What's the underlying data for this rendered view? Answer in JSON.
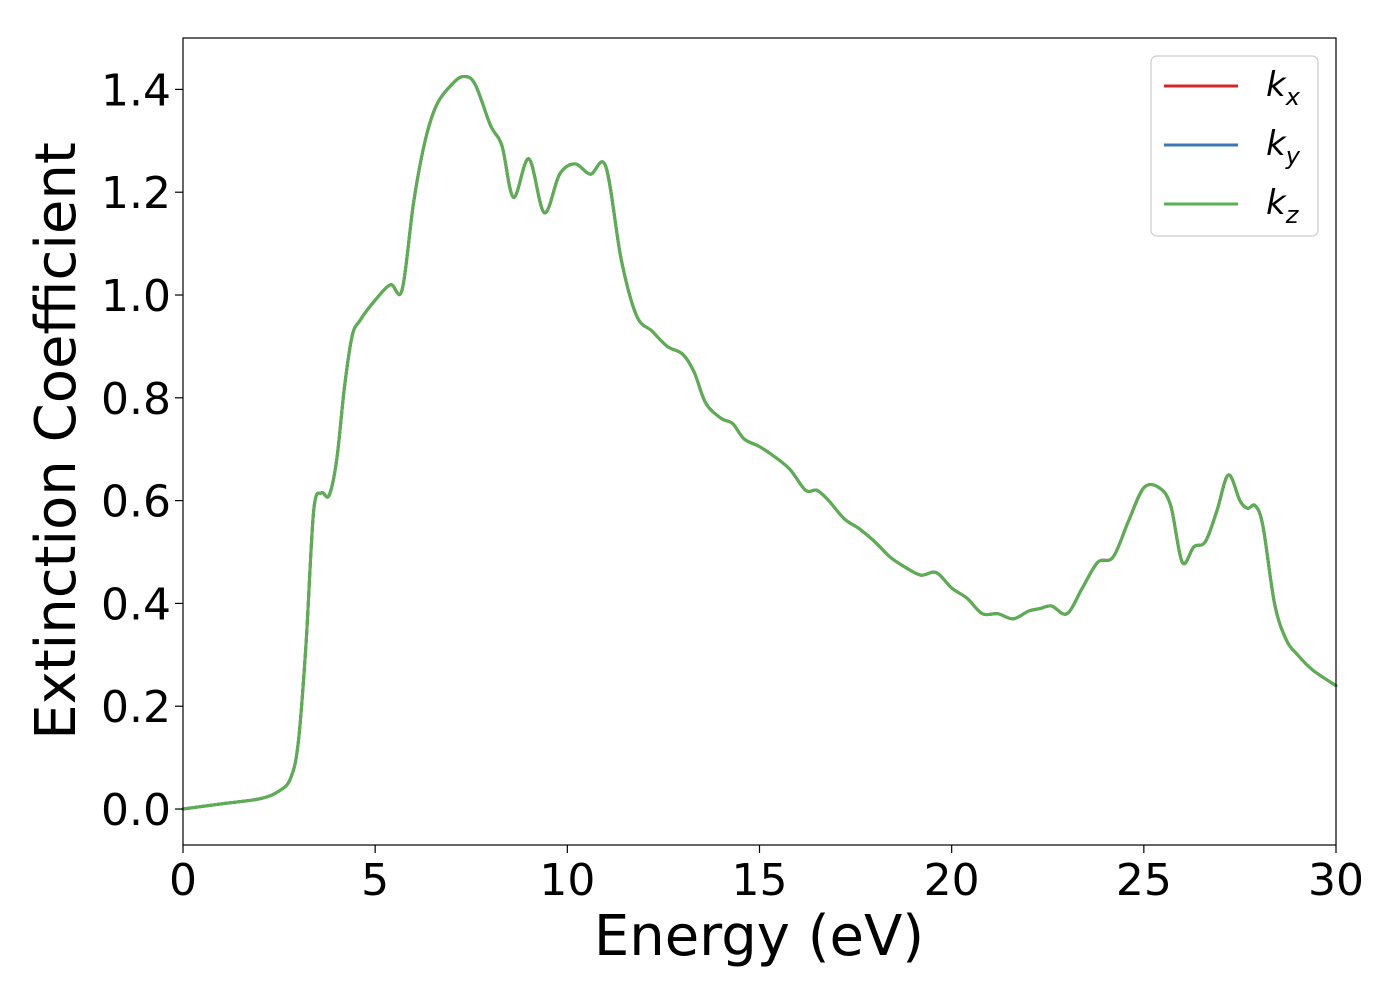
{
  "chart_data": {
    "type": "line",
    "title": "",
    "xlabel": "Energy (eV)",
    "ylabel": "Extinction Coefficient",
    "xlim": [
      0,
      30
    ],
    "ylim": [
      -0.07,
      1.5
    ],
    "xticks": [
      0,
      5,
      10,
      15,
      20,
      25,
      30
    ],
    "xtick_labels": [
      "0",
      "5",
      "10",
      "15",
      "20",
      "25",
      "30"
    ],
    "yticks": [
      0.0,
      0.2,
      0.4,
      0.6,
      0.8,
      1.0,
      1.2,
      1.4
    ],
    "ytick_labels": [
      "0.0",
      "0.2",
      "0.4",
      "0.6",
      "0.8",
      "1.0",
      "1.2",
      "1.4"
    ],
    "grid": false,
    "legend_position": "top-right",
    "series": [
      {
        "name": "k",
        "subscript": "x",
        "color": "#d62728",
        "x": [
          0,
          1,
          2,
          2.5,
          2.8,
          3.0,
          3.2,
          3.4,
          3.6,
          3.8,
          4.0,
          4.2,
          4.4,
          4.6,
          5.0,
          5.4,
          5.7,
          6.0,
          6.3,
          6.6,
          7.0,
          7.3,
          7.6,
          8.0,
          8.3,
          8.6,
          9.0,
          9.4,
          9.8,
          10.2,
          10.6,
          11.0,
          11.4,
          11.8,
          12.2,
          12.6,
          13.0,
          13.3,
          13.6,
          14.0,
          14.3,
          14.6,
          15.0,
          15.4,
          15.8,
          16.2,
          16.5,
          16.8,
          17.2,
          17.6,
          18.0,
          18.4,
          18.8,
          19.2,
          19.6,
          20.0,
          20.4,
          20.8,
          21.2,
          21.6,
          22.0,
          22.3,
          22.6,
          23.0,
          23.4,
          23.8,
          24.2,
          24.6,
          25.0,
          25.4,
          25.7,
          26.0,
          26.3,
          26.6,
          26.9,
          27.2,
          27.5,
          27.7,
          27.9,
          28.1,
          28.4,
          28.7,
          29.0,
          29.4,
          30.0
        ],
        "y": [
          0.0,
          0.01,
          0.02,
          0.035,
          0.06,
          0.13,
          0.32,
          0.58,
          0.615,
          0.61,
          0.68,
          0.82,
          0.92,
          0.95,
          0.99,
          1.02,
          1.01,
          1.18,
          1.3,
          1.37,
          1.41,
          1.425,
          1.41,
          1.33,
          1.29,
          1.19,
          1.265,
          1.16,
          1.235,
          1.255,
          1.235,
          1.25,
          1.07,
          0.96,
          0.93,
          0.9,
          0.885,
          0.85,
          0.79,
          0.76,
          0.75,
          0.72,
          0.705,
          0.685,
          0.66,
          0.62,
          0.62,
          0.6,
          0.565,
          0.545,
          0.52,
          0.49,
          0.47,
          0.455,
          0.46,
          0.43,
          0.41,
          0.38,
          0.38,
          0.37,
          0.385,
          0.39,
          0.395,
          0.38,
          0.43,
          0.48,
          0.49,
          0.56,
          0.625,
          0.625,
          0.59,
          0.48,
          0.51,
          0.52,
          0.58,
          0.65,
          0.6,
          0.585,
          0.59,
          0.55,
          0.4,
          0.33,
          0.3,
          0.27,
          0.24
        ]
      },
      {
        "name": "k",
        "subscript": "y",
        "color": "#3e78b2",
        "x": [
          0,
          1,
          2,
          2.5,
          2.8,
          3.0,
          3.2,
          3.4,
          3.6,
          3.8,
          4.0,
          4.2,
          4.4,
          4.6,
          5.0,
          5.4,
          5.7,
          6.0,
          6.3,
          6.6,
          7.0,
          7.3,
          7.6,
          8.0,
          8.3,
          8.6,
          9.0,
          9.4,
          9.8,
          10.2,
          10.6,
          11.0,
          11.4,
          11.8,
          12.2,
          12.6,
          13.0,
          13.3,
          13.6,
          14.0,
          14.3,
          14.6,
          15.0,
          15.4,
          15.8,
          16.2,
          16.5,
          16.8,
          17.2,
          17.6,
          18.0,
          18.4,
          18.8,
          19.2,
          19.6,
          20.0,
          20.4,
          20.8,
          21.2,
          21.6,
          22.0,
          22.3,
          22.6,
          23.0,
          23.4,
          23.8,
          24.2,
          24.6,
          25.0,
          25.4,
          25.7,
          26.0,
          26.3,
          26.6,
          26.9,
          27.2,
          27.5,
          27.7,
          27.9,
          28.1,
          28.4,
          28.7,
          29.0,
          29.4,
          30.0
        ],
        "y": [
          0.0,
          0.01,
          0.02,
          0.035,
          0.06,
          0.13,
          0.32,
          0.58,
          0.615,
          0.61,
          0.68,
          0.82,
          0.92,
          0.95,
          0.99,
          1.02,
          1.01,
          1.18,
          1.3,
          1.37,
          1.41,
          1.425,
          1.41,
          1.33,
          1.29,
          1.19,
          1.265,
          1.16,
          1.235,
          1.255,
          1.235,
          1.25,
          1.07,
          0.96,
          0.93,
          0.9,
          0.885,
          0.85,
          0.79,
          0.76,
          0.75,
          0.72,
          0.705,
          0.685,
          0.66,
          0.62,
          0.62,
          0.6,
          0.565,
          0.545,
          0.52,
          0.49,
          0.47,
          0.455,
          0.46,
          0.43,
          0.41,
          0.38,
          0.38,
          0.37,
          0.385,
          0.39,
          0.395,
          0.38,
          0.43,
          0.48,
          0.49,
          0.56,
          0.625,
          0.625,
          0.59,
          0.48,
          0.51,
          0.52,
          0.58,
          0.65,
          0.6,
          0.585,
          0.59,
          0.55,
          0.4,
          0.33,
          0.3,
          0.27,
          0.24
        ]
      },
      {
        "name": "k",
        "subscript": "z",
        "color": "#5aaf4f",
        "x": [
          0,
          1,
          2,
          2.5,
          2.8,
          3.0,
          3.2,
          3.4,
          3.6,
          3.8,
          4.0,
          4.2,
          4.4,
          4.6,
          5.0,
          5.4,
          5.7,
          6.0,
          6.3,
          6.6,
          7.0,
          7.3,
          7.6,
          8.0,
          8.3,
          8.6,
          9.0,
          9.4,
          9.8,
          10.2,
          10.6,
          11.0,
          11.4,
          11.8,
          12.2,
          12.6,
          13.0,
          13.3,
          13.6,
          14.0,
          14.3,
          14.6,
          15.0,
          15.4,
          15.8,
          16.2,
          16.5,
          16.8,
          17.2,
          17.6,
          18.0,
          18.4,
          18.8,
          19.2,
          19.6,
          20.0,
          20.4,
          20.8,
          21.2,
          21.6,
          22.0,
          22.3,
          22.6,
          23.0,
          23.4,
          23.8,
          24.2,
          24.6,
          25.0,
          25.4,
          25.7,
          26.0,
          26.3,
          26.6,
          26.9,
          27.2,
          27.5,
          27.7,
          27.9,
          28.1,
          28.4,
          28.7,
          29.0,
          29.4,
          30.0
        ],
        "y": [
          0.0,
          0.01,
          0.02,
          0.035,
          0.06,
          0.13,
          0.32,
          0.58,
          0.615,
          0.61,
          0.68,
          0.82,
          0.92,
          0.95,
          0.99,
          1.02,
          1.01,
          1.18,
          1.3,
          1.37,
          1.41,
          1.425,
          1.41,
          1.33,
          1.29,
          1.19,
          1.265,
          1.16,
          1.235,
          1.255,
          1.235,
          1.25,
          1.07,
          0.96,
          0.93,
          0.9,
          0.885,
          0.85,
          0.79,
          0.76,
          0.75,
          0.72,
          0.705,
          0.685,
          0.66,
          0.62,
          0.62,
          0.6,
          0.565,
          0.545,
          0.52,
          0.49,
          0.47,
          0.455,
          0.46,
          0.43,
          0.41,
          0.38,
          0.38,
          0.37,
          0.385,
          0.39,
          0.395,
          0.38,
          0.43,
          0.48,
          0.49,
          0.56,
          0.625,
          0.625,
          0.59,
          0.48,
          0.51,
          0.52,
          0.58,
          0.65,
          0.6,
          0.585,
          0.59,
          0.55,
          0.4,
          0.33,
          0.3,
          0.27,
          0.24
        ]
      }
    ]
  }
}
